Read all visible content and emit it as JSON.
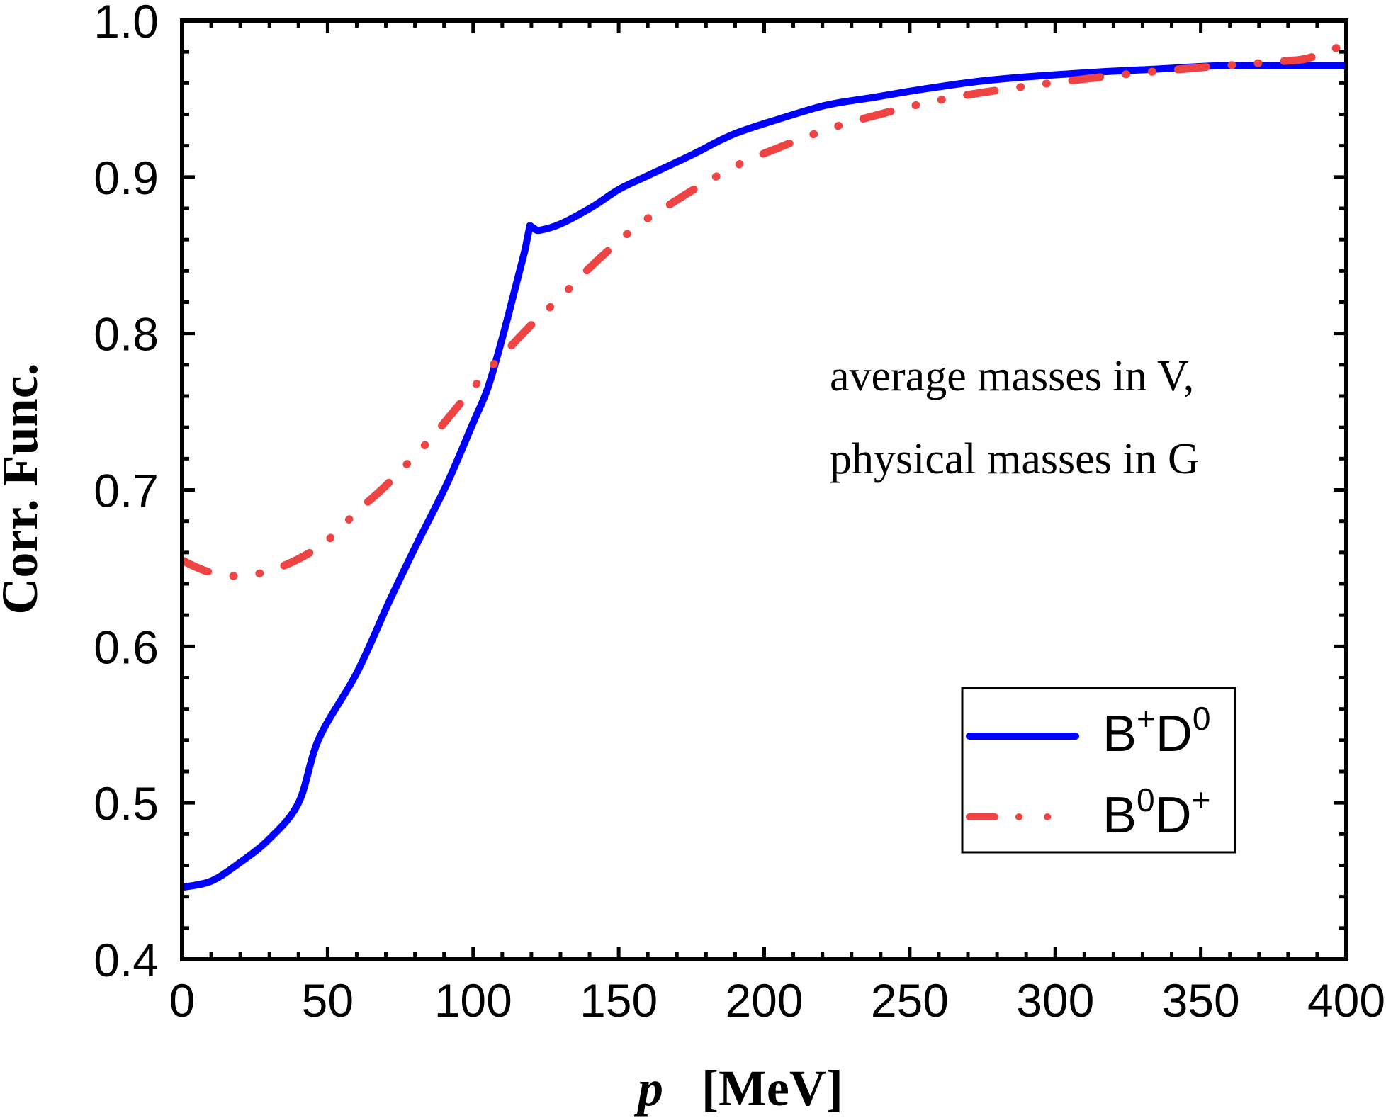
{
  "chart_data": {
    "type": "line",
    "title": "",
    "xlabel": "p",
    "xlabel_unit": "[MeV]",
    "ylabel": "Corr. Func.",
    "xlim": [
      0,
      400
    ],
    "ylim": [
      0.4,
      1.0
    ],
    "xticks": [
      0,
      50,
      100,
      150,
      200,
      250,
      300,
      350,
      400
    ],
    "xtick_labels": [
      "0",
      "50",
      "100",
      "150",
      "200",
      "250",
      "300",
      "350",
      "400"
    ],
    "x_minor_step": 10,
    "yticks": [
      0.4,
      0.5,
      0.6,
      0.7,
      0.8,
      0.9,
      1.0
    ],
    "ytick_labels": [
      "0.4",
      "0.5",
      "0.6",
      "0.7",
      "0.8",
      "0.9",
      "1.0"
    ],
    "y_minor_step": 0.02,
    "grid": false,
    "legend_position": "lower-right",
    "annotation": [
      "average masses in V,",
      "physical masses in G"
    ],
    "series": [
      {
        "name": "B+D0",
        "label_base": [
          "B",
          "D"
        ],
        "label_sup": [
          "+",
          "0"
        ],
        "color": "#0000ff",
        "style": "solid",
        "x": [
          0,
          10,
          20,
          30,
          40,
          47,
          60,
          71,
          80,
          91,
          100,
          105,
          110,
          115,
          118,
          119.5,
          121,
          123,
          130,
          141,
          150,
          159,
          175,
          189,
          205,
          221.5,
          238,
          254,
          273,
          290,
          314,
          335,
          355,
          375,
          400
        ],
        "y": [
          0.446,
          0.45,
          0.462,
          0.477,
          0.5,
          0.541,
          0.583,
          0.628,
          0.663,
          0.704,
          0.743,
          0.765,
          0.797,
          0.833,
          0.855,
          0.869,
          0.867,
          0.866,
          0.87,
          0.881,
          0.892,
          0.9,
          0.914,
          0.927,
          0.937,
          0.946,
          0.951,
          0.956,
          0.961,
          0.964,
          0.967,
          0.969,
          0.971,
          0.971,
          0.971
        ]
      },
      {
        "name": "B0D+",
        "label_base": [
          "B",
          "D"
        ],
        "label_sup": [
          "0",
          "+"
        ],
        "color": "#ee4444",
        "style": "dash-dot-dot",
        "x": [
          0,
          8.5,
          17.8,
          27.5,
          35.5,
          44,
          51.4,
          60,
          69.6,
          79,
          86,
          95,
          104,
          112,
          120.8,
          130,
          137.8,
          148.8,
          158,
          168,
          178.5,
          192.3,
          204,
          215,
          226,
          237.6,
          250,
          265.4,
          275,
          290,
          302.6,
          326,
          350,
          364,
          378,
          387,
          400
        ],
        "y": [
          0.655,
          0.648,
          0.645,
          0.647,
          0.652,
          0.66,
          0.67,
          0.686,
          0.702,
          0.72,
          0.734,
          0.754,
          0.774,
          0.79,
          0.807,
          0.823,
          0.838,
          0.857,
          0.871,
          0.883,
          0.895,
          0.909,
          0.918,
          0.926,
          0.933,
          0.939,
          0.945,
          0.951,
          0.954,
          0.958,
          0.961,
          0.966,
          0.97,
          0.972,
          0.974,
          0.976,
          0.985
        ]
      }
    ]
  }
}
